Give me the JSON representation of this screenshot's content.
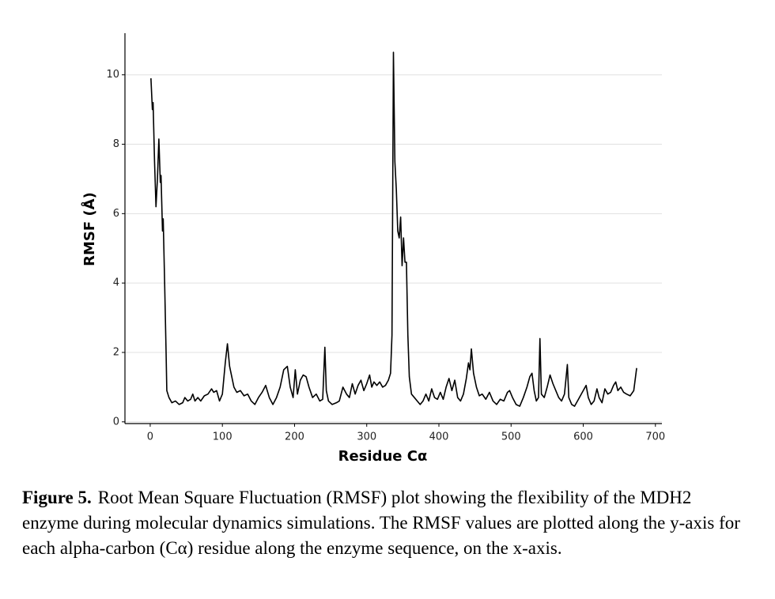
{
  "chart_data": {
    "type": "line",
    "x_label": "Residue Cα",
    "y_label": "RMSF (Å)",
    "xlim": [
      -35,
      709
    ],
    "ylim": [
      -0.05,
      11.2
    ],
    "xticks": [
      0,
      100,
      200,
      300,
      400,
      500,
      600,
      700
    ],
    "yticks": [
      0,
      2,
      4,
      6,
      8,
      10
    ],
    "grid": true,
    "series": [
      {
        "color": "#000000",
        "x": [
          1,
          3,
          4,
          6,
          8,
          10,
          12,
          14,
          15,
          17,
          18,
          20,
          22,
          23,
          26,
          30,
          35,
          40,
          45,
          48,
          52,
          56,
          59,
          62,
          66,
          70,
          75,
          80,
          85,
          88,
          92,
          96,
          100,
          104,
          107,
          110,
          113,
          116,
          120,
          125,
          130,
          135,
          140,
          145,
          150,
          155,
          160,
          165,
          170,
          175,
          180,
          185,
          190,
          194,
          198,
          201,
          204,
          208,
          212,
          216,
          220,
          225,
          230,
          235,
          239,
          242,
          244,
          247,
          252,
          258,
          262,
          267,
          272,
          276,
          280,
          284,
          288,
          292,
          296,
          300,
          304,
          307,
          310,
          314,
          318,
          322,
          326,
          330,
          333,
          335,
          337,
          339,
          341,
          343,
          345,
          347,
          349,
          351,
          353,
          355,
          357,
          359,
          362,
          366,
          370,
          374,
          378,
          382,
          386,
          390,
          394,
          398,
          402,
          406,
          410,
          414,
          418,
          422,
          426,
          430,
          434,
          438,
          441,
          443,
          445,
          448,
          452,
          456,
          460,
          465,
          470,
          475,
          480,
          485,
          490,
          495,
          498,
          502,
          507,
          512,
          517,
          522,
          526,
          529,
          532,
          535,
          538,
          540,
          542,
          546,
          550,
          554,
          558,
          562,
          566,
          570,
          574,
          578,
          580,
          584,
          588,
          592,
          596,
          600,
          604,
          607,
          611,
          615,
          619,
          622,
          626,
          630,
          634,
          638,
          642,
          645,
          648,
          652,
          656,
          660,
          665,
          670,
          674
        ],
        "values": [
          9.9,
          9.0,
          9.2,
          7.5,
          6.2,
          7.0,
          8.15,
          6.9,
          7.1,
          5.5,
          5.85,
          4.0,
          2.0,
          0.9,
          0.7,
          0.55,
          0.6,
          0.5,
          0.55,
          0.7,
          0.6,
          0.65,
          0.8,
          0.6,
          0.7,
          0.6,
          0.75,
          0.8,
          0.95,
          0.85,
          0.9,
          0.6,
          0.8,
          1.7,
          2.25,
          1.6,
          1.3,
          1.0,
          0.85,
          0.9,
          0.75,
          0.8,
          0.6,
          0.5,
          0.7,
          0.85,
          1.05,
          0.7,
          0.5,
          0.7,
          1.0,
          1.5,
          1.6,
          1.0,
          0.7,
          1.5,
          0.8,
          1.2,
          1.35,
          1.3,
          1.0,
          0.7,
          0.8,
          0.6,
          0.65,
          2.15,
          0.9,
          0.6,
          0.5,
          0.55,
          0.6,
          1.0,
          0.8,
          0.7,
          1.1,
          0.8,
          1.05,
          1.2,
          0.9,
          1.1,
          1.35,
          1.0,
          1.15,
          1.05,
          1.15,
          1.0,
          1.05,
          1.2,
          1.4,
          2.5,
          10.65,
          7.5,
          6.7,
          5.5,
          5.3,
          5.9,
          4.5,
          5.3,
          4.6,
          4.6,
          2.5,
          1.3,
          0.8,
          0.7,
          0.6,
          0.5,
          0.6,
          0.8,
          0.6,
          0.95,
          0.7,
          0.65,
          0.85,
          0.65,
          1.0,
          1.25,
          0.9,
          1.2,
          0.7,
          0.6,
          0.8,
          1.25,
          1.7,
          1.5,
          2.1,
          1.4,
          1.0,
          0.75,
          0.8,
          0.65,
          0.85,
          0.6,
          0.5,
          0.65,
          0.6,
          0.85,
          0.9,
          0.7,
          0.5,
          0.45,
          0.7,
          1.0,
          1.3,
          1.4,
          0.9,
          0.6,
          0.7,
          2.4,
          0.8,
          0.7,
          1.0,
          1.35,
          1.1,
          0.9,
          0.7,
          0.6,
          0.8,
          1.65,
          0.7,
          0.5,
          0.45,
          0.6,
          0.75,
          0.9,
          1.05,
          0.7,
          0.5,
          0.6,
          0.95,
          0.7,
          0.55,
          0.95,
          0.8,
          0.85,
          1.05,
          1.15,
          0.9,
          1.0,
          0.85,
          0.8,
          0.75,
          0.9,
          1.55
        ]
      }
    ]
  },
  "caption": {
    "label": "Figure 5.",
    "text": "Root Mean Square Fluctuation (RMSF) plot showing the flexibility of the MDH2 enzyme during molecular dynamics simulations. The RMSF values are plotted along the y-axis for each alpha-carbon (Cα) residue along the enzyme sequence, on the x-axis."
  }
}
